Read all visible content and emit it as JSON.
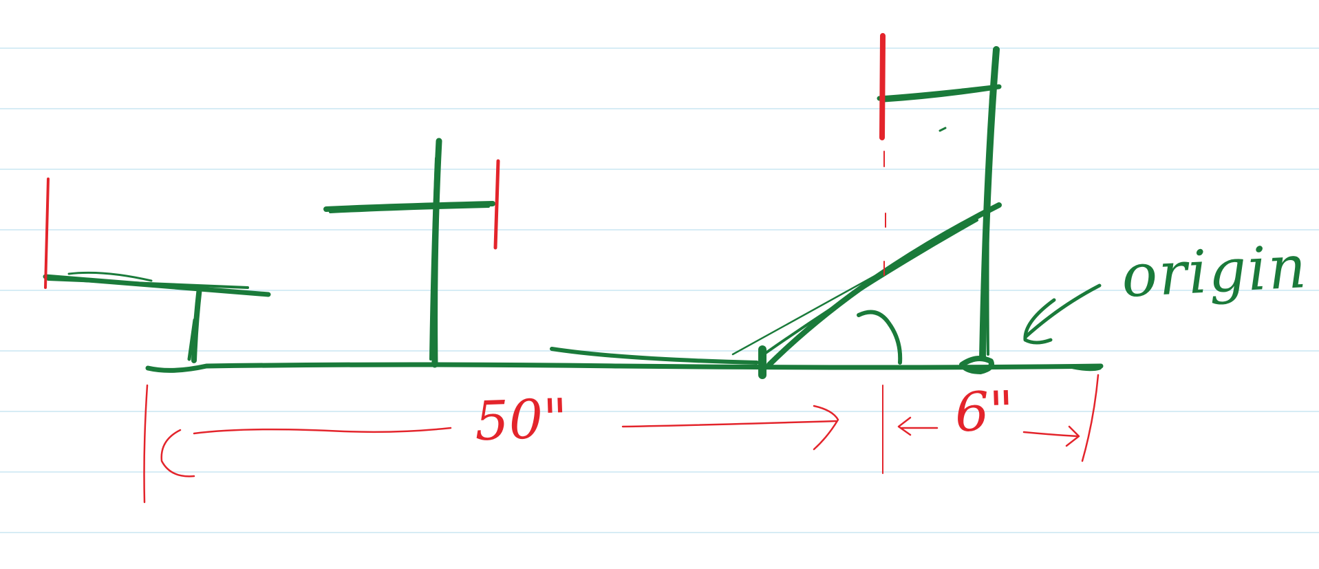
{
  "diagram": {
    "title": "",
    "colors": {
      "paper": "#ffffff",
      "ruling": "#c9e6f2",
      "ink_green": "#1a7a3a",
      "ink_red": "#e3242b"
    },
    "labels": {
      "span_long": "50\"",
      "span_short": "6\"",
      "reference_point": "origin"
    }
  }
}
